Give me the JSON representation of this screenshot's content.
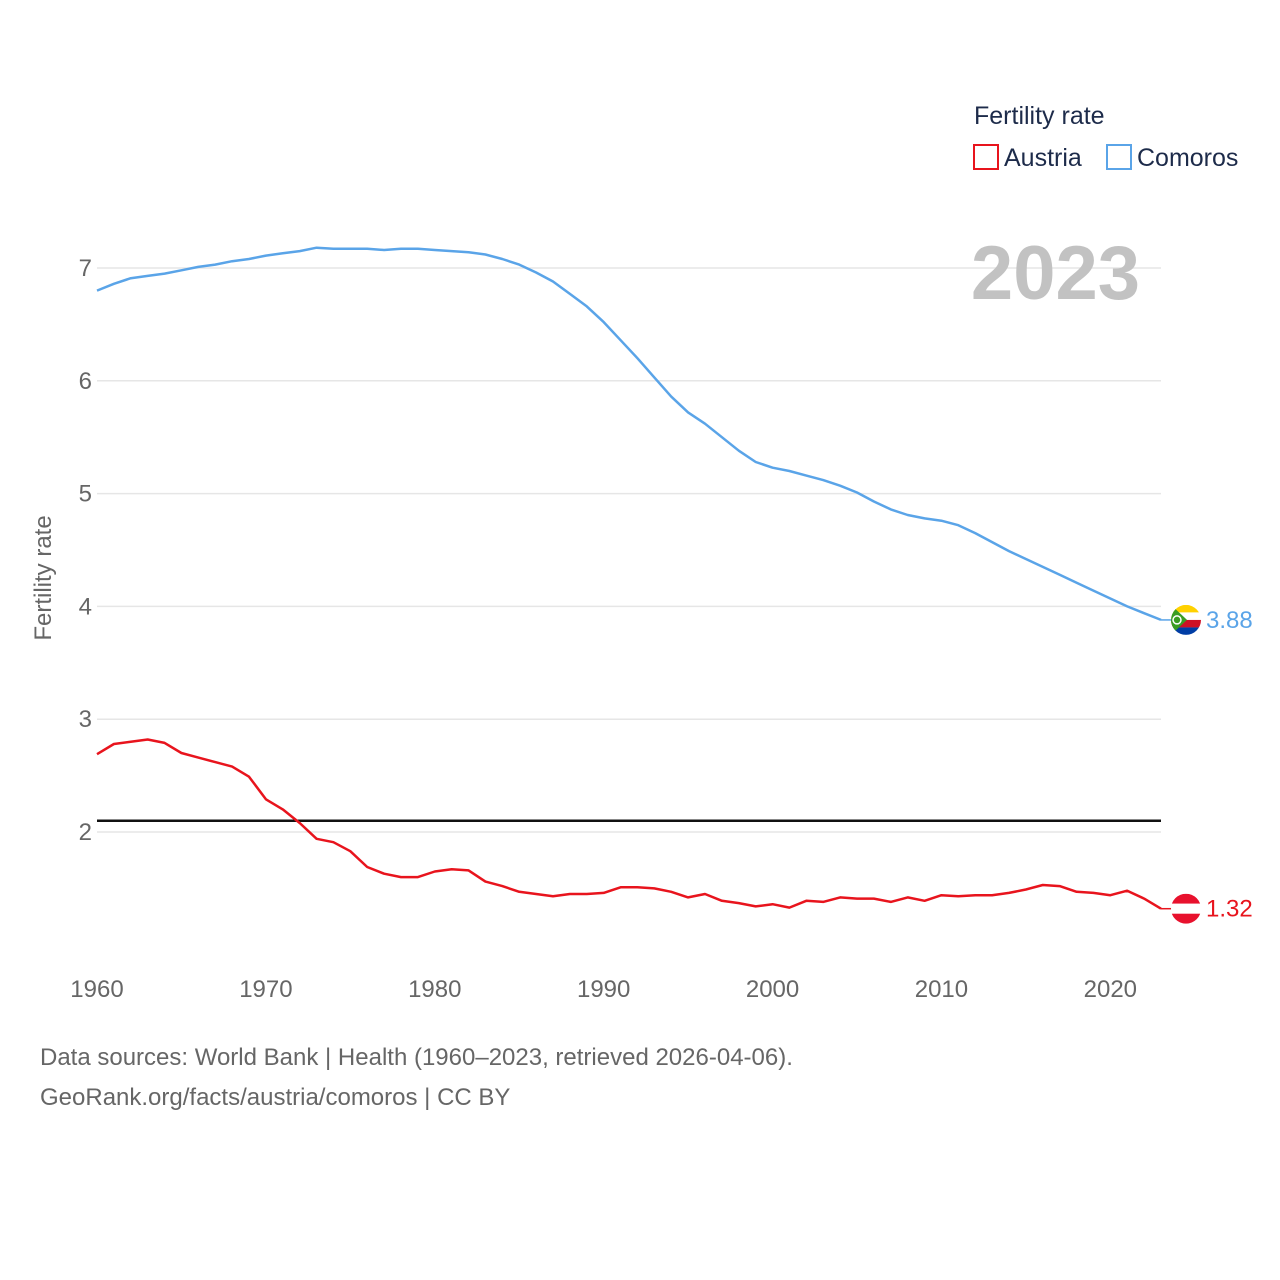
{
  "chart_data": {
    "type": "line",
    "title": "",
    "year_label": "2023",
    "legend_title": "Fertility rate",
    "xlabel": "",
    "ylabel": "Fertility rate",
    "xlim": [
      1960,
      2023
    ],
    "ylim": [
      1.0,
      7.5
    ],
    "x_ticks": [
      1960,
      1970,
      1980,
      1990,
      2000,
      2010,
      2020
    ],
    "y_ticks": [
      2,
      3,
      4,
      5,
      6,
      7
    ],
    "reference_line": 2.1,
    "x": [
      1960,
      1961,
      1962,
      1963,
      1964,
      1965,
      1966,
      1967,
      1968,
      1969,
      1970,
      1971,
      1972,
      1973,
      1974,
      1975,
      1976,
      1977,
      1978,
      1979,
      1980,
      1981,
      1982,
      1983,
      1984,
      1985,
      1986,
      1987,
      1988,
      1989,
      1990,
      1991,
      1992,
      1993,
      1994,
      1995,
      1996,
      1997,
      1998,
      1999,
      2000,
      2001,
      2002,
      2003,
      2004,
      2005,
      2006,
      2007,
      2008,
      2009,
      2010,
      2011,
      2012,
      2013,
      2014,
      2015,
      2016,
      2017,
      2018,
      2019,
      2020,
      2021,
      2022,
      2023
    ],
    "series": [
      {
        "name": "Austria",
        "color": "#e8141d",
        "end_label": "1.32",
        "flag": "austria-flag",
        "values": [
          2.69,
          2.78,
          2.8,
          2.82,
          2.79,
          2.7,
          2.66,
          2.62,
          2.58,
          2.49,
          2.29,
          2.2,
          2.08,
          1.94,
          1.91,
          1.83,
          1.69,
          1.63,
          1.6,
          1.6,
          1.65,
          1.67,
          1.66,
          1.56,
          1.52,
          1.47,
          1.45,
          1.43,
          1.45,
          1.45,
          1.46,
          1.51,
          1.51,
          1.5,
          1.47,
          1.42,
          1.45,
          1.39,
          1.37,
          1.34,
          1.36,
          1.33,
          1.39,
          1.38,
          1.42,
          1.41,
          1.41,
          1.38,
          1.42,
          1.39,
          1.44,
          1.43,
          1.44,
          1.44,
          1.46,
          1.49,
          1.53,
          1.52,
          1.47,
          1.46,
          1.44,
          1.48,
          1.41,
          1.32
        ]
      },
      {
        "name": "Comoros",
        "color": "#5aa4e8",
        "end_label": "3.88",
        "flag": "comoros-flag",
        "values": [
          6.8,
          6.86,
          6.91,
          6.93,
          6.95,
          6.98,
          7.01,
          7.03,
          7.06,
          7.08,
          7.11,
          7.13,
          7.15,
          7.18,
          7.17,
          7.17,
          7.17,
          7.16,
          7.17,
          7.17,
          7.16,
          7.15,
          7.14,
          7.12,
          7.08,
          7.03,
          6.96,
          6.88,
          6.77,
          6.66,
          6.52,
          6.36,
          6.2,
          6.03,
          5.86,
          5.72,
          5.62,
          5.5,
          5.38,
          5.28,
          5.23,
          5.2,
          5.16,
          5.12,
          5.07,
          5.01,
          4.93,
          4.86,
          4.81,
          4.78,
          4.76,
          4.72,
          4.65,
          4.57,
          4.49,
          4.42,
          4.35,
          4.28,
          4.21,
          4.14,
          4.07,
          4.0,
          3.94,
          3.88
        ]
      }
    ]
  },
  "footer": {
    "sources": "Data sources: World Bank | Health (1960–2023, retrieved 2026-04-06).",
    "link": "GeoRank.org/facts/austria/comoros | CC BY"
  }
}
